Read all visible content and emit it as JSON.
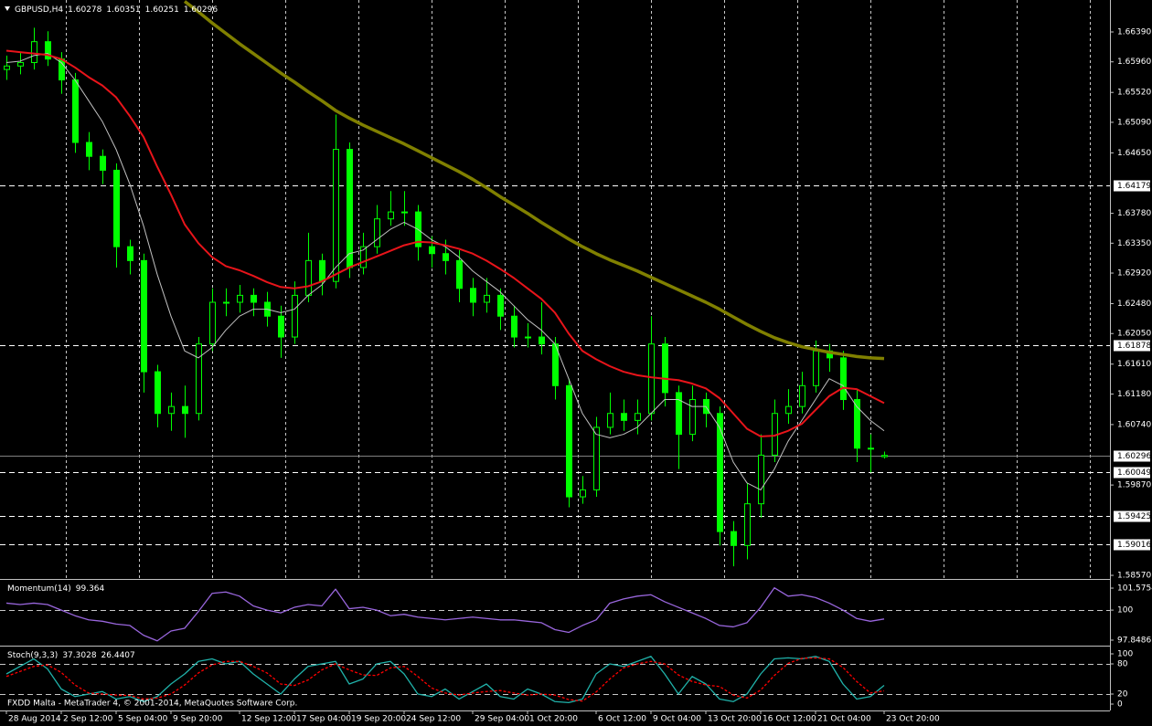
{
  "chart_data": [
    {
      "type": "candlestick",
      "title": "GBPUSD,H4",
      "categories": [
        "28 Aug 2014",
        null,
        null,
        null,
        "2 Sep 12:00",
        null,
        null,
        null,
        "5 Sep 04:00",
        null,
        null,
        null,
        "9 Sep 20:00",
        null,
        null,
        null,
        null,
        "12 Sep 12:00",
        null,
        null,
        null,
        "17 Sep 04:00",
        null,
        null,
        null,
        "19 Sep 20:00",
        null,
        null,
        null,
        "24 Sep 12:00",
        null,
        null,
        null,
        null,
        "29 Sep 04:00",
        null,
        null,
        null,
        "1 Oct 20:00",
        null,
        null,
        null,
        null,
        "6 Oct 12:00",
        null,
        null,
        null,
        "9 Oct 04:00",
        null,
        null,
        null,
        "13 Oct 20:00",
        null,
        null,
        null,
        "16 Oct 12:00",
        null,
        null,
        null,
        "21 Oct 04:00",
        null,
        null,
        null,
        null,
        "23 Oct 20:00"
      ],
      "open": [
        1.6585,
        1.659,
        1.6595,
        1.6625,
        1.66,
        1.657,
        1.648,
        1.646,
        1.644,
        1.633,
        1.631,
        1.615,
        1.609,
        1.61,
        1.609,
        1.619,
        1.625,
        1.625,
        1.626,
        1.625,
        1.623,
        1.62,
        1.626,
        1.631,
        1.628,
        1.647,
        1.63,
        1.633,
        1.637,
        1.638,
        1.638,
        1.633,
        1.632,
        1.631,
        1.627,
        1.625,
        1.626,
        1.623,
        1.62,
        1.62,
        1.619,
        1.613,
        1.597,
        1.598,
        1.607,
        1.609,
        1.608,
        1.609,
        1.619,
        1.612,
        1.606,
        1.611,
        1.609,
        1.592,
        1.59,
        1.596,
        1.603,
        1.609,
        1.61,
        1.613,
        1.618,
        1.617,
        1.611,
        1.604,
        1.60278
      ],
      "high": [
        1.6605,
        1.661,
        1.6645,
        1.664,
        1.661,
        1.658,
        1.6495,
        1.647,
        1.645,
        1.634,
        1.632,
        1.616,
        1.612,
        1.613,
        1.62,
        1.627,
        1.627,
        1.6275,
        1.627,
        1.6265,
        1.6245,
        1.628,
        1.635,
        1.632,
        1.652,
        1.648,
        1.635,
        1.639,
        1.641,
        1.641,
        1.639,
        1.6345,
        1.634,
        1.6325,
        1.6285,
        1.6285,
        1.627,
        1.6245,
        1.622,
        1.625,
        1.62,
        1.614,
        1.6,
        1.6085,
        1.612,
        1.611,
        1.611,
        1.623,
        1.62,
        1.613,
        1.613,
        1.612,
        1.61,
        1.5935,
        1.599,
        1.606,
        1.611,
        1.6125,
        1.615,
        1.6195,
        1.619,
        1.618,
        1.6125,
        1.606,
        1.60351
      ],
      "low": [
        1.657,
        1.6578,
        1.6585,
        1.659,
        1.655,
        1.6465,
        1.644,
        1.642,
        1.63,
        1.629,
        1.612,
        1.607,
        1.6065,
        1.6055,
        1.608,
        1.618,
        1.623,
        1.6235,
        1.623,
        1.6215,
        1.617,
        1.619,
        1.625,
        1.626,
        1.627,
        1.6285,
        1.629,
        1.632,
        1.636,
        1.636,
        1.631,
        1.63,
        1.629,
        1.625,
        1.623,
        1.6235,
        1.621,
        1.6185,
        1.6185,
        1.6175,
        1.611,
        1.5955,
        1.596,
        1.597,
        1.606,
        1.6065,
        1.606,
        1.608,
        1.61,
        1.601,
        1.605,
        1.607,
        1.59,
        1.587,
        1.588,
        1.594,
        1.602,
        1.6075,
        1.609,
        1.612,
        1.615,
        1.6095,
        1.602,
        1.6005,
        1.60251
      ],
      "close": [
        1.659,
        1.6595,
        1.6625,
        1.66,
        1.657,
        1.648,
        1.646,
        1.644,
        1.633,
        1.631,
        1.615,
        1.609,
        1.61,
        1.609,
        1.619,
        1.625,
        1.625,
        1.626,
        1.625,
        1.623,
        1.62,
        1.626,
        1.631,
        1.628,
        1.647,
        1.63,
        1.633,
        1.637,
        1.638,
        1.638,
        1.633,
        1.632,
        1.631,
        1.627,
        1.625,
        1.626,
        1.623,
        1.62,
        1.62,
        1.619,
        1.613,
        1.597,
        1.598,
        1.607,
        1.609,
        1.608,
        1.609,
        1.619,
        1.612,
        1.606,
        1.611,
        1.609,
        1.592,
        1.59,
        1.596,
        1.603,
        1.609,
        1.61,
        1.613,
        1.618,
        1.617,
        1.611,
        1.604,
        1.604,
        1.60296
      ],
      "color": "#00ff00",
      "moving_averages": [
        {
          "color": "#c0c0c0",
          "line_width": 1,
          "values": [
            1.6595,
            1.6597,
            1.6605,
            1.6608,
            1.6595,
            1.657,
            1.654,
            1.651,
            1.647,
            1.642,
            1.636,
            1.629,
            1.623,
            1.618,
            1.617,
            1.6185,
            1.621,
            1.623,
            1.624,
            1.624,
            1.6235,
            1.624,
            1.626,
            1.6275,
            1.63,
            1.632,
            1.6325,
            1.634,
            1.6355,
            1.6365,
            1.6355,
            1.634,
            1.633,
            1.6315,
            1.6295,
            1.628,
            1.6265,
            1.6245,
            1.6225,
            1.621,
            1.619,
            1.614,
            1.609,
            1.606,
            1.6055,
            1.606,
            1.607,
            1.609,
            1.611,
            1.611,
            1.61,
            1.61,
            1.607,
            1.602,
            1.599,
            1.598,
            1.601,
            1.605,
            1.608,
            1.611,
            1.614,
            1.613,
            1.61,
            1.608,
            1.6065
          ]
        },
        {
          "color": "#e8141a",
          "line_width": 2,
          "values": [
            1.6612,
            1.661,
            1.6608,
            1.6606,
            1.66,
            1.6588,
            1.6574,
            1.6562,
            1.6545,
            1.6518,
            1.6488,
            1.6445,
            1.6405,
            1.6362,
            1.6335,
            1.6315,
            1.6302,
            1.6296,
            1.6288,
            1.6279,
            1.6272,
            1.627,
            1.6273,
            1.628,
            1.629,
            1.63,
            1.6308,
            1.6316,
            1.6324,
            1.6332,
            1.6337,
            1.6336,
            1.6332,
            1.6327,
            1.632,
            1.631,
            1.6298,
            1.6285,
            1.627,
            1.6255,
            1.6235,
            1.6205,
            1.618,
            1.6168,
            1.6158,
            1.615,
            1.6145,
            1.6142,
            1.614,
            1.6138,
            1.6133,
            1.6126,
            1.6112,
            1.609,
            1.6068,
            1.6057,
            1.6058,
            1.6065,
            1.6075,
            1.6095,
            1.6115,
            1.6127,
            1.6125,
            1.6115,
            1.6105
          ]
        },
        {
          "color": "#808000",
          "line_width": 3.5,
          "values": [
            null,
            null,
            null,
            null,
            null,
            null,
            null,
            null,
            null,
            null,
            null,
            null,
            null,
            1.6683,
            1.6668,
            1.6652,
            1.6637,
            1.6622,
            1.6608,
            1.6594,
            1.658,
            1.6567,
            1.6553,
            1.654,
            1.6526,
            1.6515,
            1.6505,
            1.6496,
            1.6487,
            1.6478,
            1.6468,
            1.6458,
            1.6448,
            1.6438,
            1.6427,
            1.6415,
            1.6402,
            1.639,
            1.6378,
            1.6365,
            1.6353,
            1.6341,
            1.633,
            1.632,
            1.6311,
            1.6303,
            1.6295,
            1.6286,
            1.6277,
            1.6268,
            1.6259,
            1.625,
            1.624,
            1.6229,
            1.6218,
            1.6208,
            1.6199,
            1.6192,
            1.6186,
            1.6182,
            1.6178,
            1.6175,
            1.6172,
            1.617,
            1.6169
          ]
        }
      ],
      "levels": [
        1.64179,
        1.61878,
        1.60049,
        1.59425,
        1.59016
      ],
      "level_color": "#ffffff",
      "current_price_color": "#808080",
      "ylim": [
        1.58531,
        1.6685
      ],
      "yticks": [
        {
          "value": 1.6639,
          "label": "1.66390"
        },
        {
          "value": 1.6596,
          "label": "1.65960"
        },
        {
          "value": 1.6552,
          "label": "1.65520"
        },
        {
          "value": 1.6509,
          "label": "1.65090"
        },
        {
          "value": 1.6465,
          "label": "1.64650"
        },
        {
          "value": 1.6378,
          "label": "1.63780"
        },
        {
          "value": 1.6335,
          "label": "1.63350"
        },
        {
          "value": 1.6292,
          "label": "1.62920"
        },
        {
          "value": 1.6248,
          "label": "1.62480"
        },
        {
          "value": 1.6205,
          "label": "1.62050"
        },
        {
          "value": 1.6161,
          "label": "1.61610"
        },
        {
          "value": 1.6118,
          "label": "1.61180"
        },
        {
          "value": 1.6074,
          "label": "1.60740"
        },
        {
          "value": 1.5987,
          "label": "1.59870"
        },
        {
          "value": 1.5857,
          "label": "1.58570"
        }
      ],
      "grid": true
    },
    {
      "type": "line",
      "title": "Momentum(14)",
      "series": [
        {
          "color": "#9966dd",
          "values": [
            100.5,
            100.4,
            100.5,
            100.4,
            100.0,
            99.6,
            99.3,
            99.2,
            99.0,
            98.9,
            98.2,
            97.8,
            98.5,
            98.7,
            99.9,
            101.2,
            101.3,
            101.0,
            100.3,
            100.0,
            99.8,
            100.2,
            100.4,
            100.3,
            101.5,
            100.1,
            100.2,
            100.0,
            99.6,
            99.7,
            99.5,
            99.4,
            99.3,
            99.4,
            99.5,
            99.4,
            99.3,
            99.3,
            99.2,
            99.1,
            98.6,
            98.4,
            98.9,
            99.3,
            100.5,
            100.8,
            101.0,
            101.1,
            100.6,
            100.2,
            99.8,
            99.4,
            98.9,
            98.8,
            99.1,
            100.2,
            101.6,
            101.0,
            101.1,
            100.9,
            100.5,
            100.0,
            99.4,
            99.2,
            99.364
          ]
        }
      ],
      "levels": [
        100
      ],
      "ylim": [
        97.52,
        102.1
      ],
      "yticks": [
        101.5754,
        100,
        97.8486
      ]
    },
    {
      "type": "line",
      "title": "Stoch(9,3,3)",
      "series": [
        {
          "color": "#20b2aa",
          "values": [
            60,
            75,
            90,
            70,
            30,
            15,
            20,
            25,
            10,
            15,
            5,
            15,
            40,
            60,
            85,
            90,
            80,
            85,
            60,
            40,
            20,
            50,
            75,
            80,
            85,
            40,
            50,
            80,
            85,
            60,
            20,
            15,
            30,
            10,
            25,
            40,
            15,
            10,
            30,
            20,
            5,
            3,
            10,
            60,
            80,
            75,
            85,
            95,
            60,
            20,
            55,
            40,
            10,
            5,
            20,
            60,
            90,
            92,
            90,
            95,
            85,
            40,
            10,
            15,
            37.3028
          ]
        },
        {
          "color": "#ff0000",
          "dashed": true,
          "values": [
            55,
            65,
            75,
            78,
            63,
            38,
            22,
            20,
            18,
            17,
            10,
            12,
            20,
            38,
            62,
            78,
            85,
            85,
            75,
            62,
            40,
            37,
            48,
            68,
            80,
            68,
            58,
            57,
            72,
            75,
            55,
            32,
            22,
            18,
            22,
            25,
            27,
            22,
            18,
            20,
            18,
            9,
            6,
            24,
            50,
            72,
            80,
            85,
            80,
            58,
            45,
            38,
            35,
            18,
            12,
            28,
            57,
            81,
            91,
            92,
            90,
            73,
            45,
            22,
            26.4407
          ]
        }
      ],
      "levels": [
        80,
        20
      ],
      "ylim": [
        -12.7,
        112.7
      ],
      "yticks": [
        100,
        80,
        20,
        0
      ],
      "annotation": "FXDD Malta - MetaTrader 4, © 2001-2014, MetaQuotes Software Corp."
    }
  ]
}
